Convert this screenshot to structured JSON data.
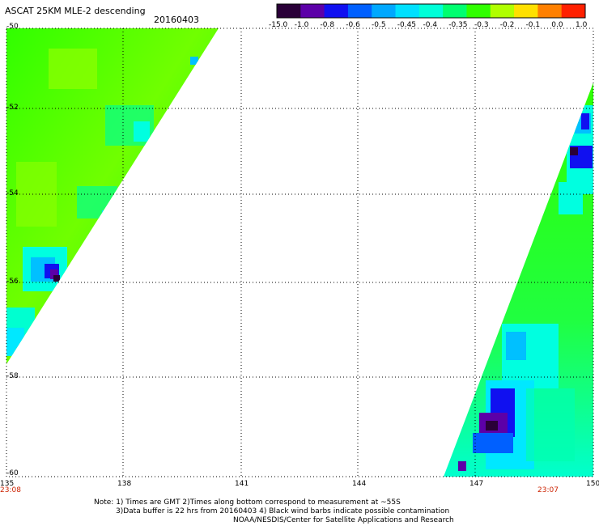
{
  "header": {
    "title": "ASCAT 25KM MLE-2 descending",
    "date": "20160403"
  },
  "colorbar": {
    "labels": [
      "-15.0",
      "-1.0",
      "-0.8",
      "-0.6",
      "-0.5",
      "-0.45",
      "-0.4",
      "-0.35",
      "-0.3",
      "-0.2",
      "-0.1",
      "0.0",
      "1.0"
    ],
    "colors": [
      "#2a0038",
      "#5c00a8",
      "#1010f0",
      "#0060ff",
      "#00a8ff",
      "#00e0ff",
      "#00ffd8",
      "#00ff70",
      "#30ff00",
      "#b0ff00",
      "#ffe000",
      "#ff8000",
      "#ff2000"
    ]
  },
  "axes": {
    "lat_labels": [
      "-50",
      "-52",
      "-54",
      "-56",
      "-58",
      "-60"
    ],
    "lon_labels": [
      "135",
      "138",
      "141",
      "144",
      "147",
      "150"
    ]
  },
  "times": {
    "left": "23:08",
    "right": "23:07"
  },
  "notes": {
    "line1": "Note: 1) Times are GMT 2)Times along bottom correspond to measurement at ~55S",
    "line2": "3)Data buffer is 22 hrs from 20160403 4) Black wind barbs indicate possible contamination",
    "line3": "NOAA/NESDIS/Center for Satellite Applications and Research"
  }
}
